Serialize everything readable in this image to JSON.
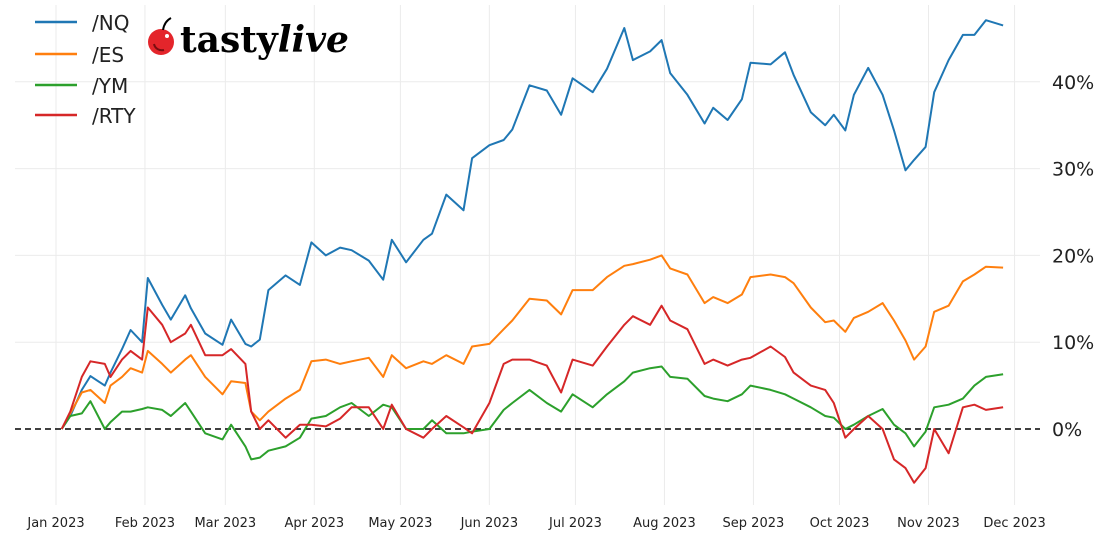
{
  "logo": {
    "text_main": "tasty",
    "text_italic": "live",
    "cherry_color": "#e4252b"
  },
  "chart_data": {
    "type": "line",
    "title": "",
    "xlabel": "",
    "ylabel": "",
    "grid": true,
    "legend_position": "top-left",
    "ylim": [
      -8.2,
      48.8
    ],
    "xlim": [
      "2022-12-31",
      "2023-12-16"
    ],
    "zero_line": "dashed",
    "x_ticks": [
      {
        "date": "2023-01-01",
        "label": "Jan 2023"
      },
      {
        "date": "2023-02-01",
        "label": "Feb 2023"
      },
      {
        "date": "2023-03-01",
        "label": "Mar 2023"
      },
      {
        "date": "2023-04-01",
        "label": "Apr 2023"
      },
      {
        "date": "2023-05-01",
        "label": "May 2023"
      },
      {
        "date": "2023-06-01",
        "label": "Jun 2023"
      },
      {
        "date": "2023-07-01",
        "label": "Jul 2023"
      },
      {
        "date": "2023-08-01",
        "label": "Aug 2023"
      },
      {
        "date": "2023-09-01",
        "label": "Sep 2023"
      },
      {
        "date": "2023-10-01",
        "label": "Oct 2023"
      },
      {
        "date": "2023-11-01",
        "label": "Nov 2023"
      },
      {
        "date": "2023-12-01",
        "label": "Dec 2023"
      }
    ],
    "y_ticks": [
      {
        "value": 0,
        "label": "0%"
      },
      {
        "value": 10,
        "label": "10%"
      },
      {
        "value": 20,
        "label": "20%"
      },
      {
        "value": 30,
        "label": "30%"
      },
      {
        "value": 40,
        "label": "40%"
      }
    ],
    "x": [
      "2023-01-03",
      "2023-01-06",
      "2023-01-10",
      "2023-01-13",
      "2023-01-18",
      "2023-01-20",
      "2023-01-24",
      "2023-01-27",
      "2023-01-31",
      "2023-02-02",
      "2023-02-07",
      "2023-02-10",
      "2023-02-15",
      "2023-02-17",
      "2023-02-22",
      "2023-02-28",
      "2023-03-03",
      "2023-03-08",
      "2023-03-10",
      "2023-03-13",
      "2023-03-16",
      "2023-03-22",
      "2023-03-27",
      "2023-03-31",
      "2023-04-05",
      "2023-04-10",
      "2023-04-14",
      "2023-04-20",
      "2023-04-25",
      "2023-04-28",
      "2023-05-03",
      "2023-05-09",
      "2023-05-12",
      "2023-05-17",
      "2023-05-23",
      "2023-05-26",
      "2023-06-01",
      "2023-06-06",
      "2023-06-09",
      "2023-06-15",
      "2023-06-21",
      "2023-06-26",
      "2023-06-30",
      "2023-07-07",
      "2023-07-12",
      "2023-07-18",
      "2023-07-21",
      "2023-07-27",
      "2023-07-31",
      "2023-08-03",
      "2023-08-09",
      "2023-08-15",
      "2023-08-18",
      "2023-08-23",
      "2023-08-28",
      "2023-08-31",
      "2023-09-07",
      "2023-09-12",
      "2023-09-15",
      "2023-09-21",
      "2023-09-26",
      "2023-09-29",
      "2023-10-03",
      "2023-10-06",
      "2023-10-11",
      "2023-10-16",
      "2023-10-20",
      "2023-10-24",
      "2023-10-27",
      "2023-10-31",
      "2023-11-03",
      "2023-11-08",
      "2023-11-13",
      "2023-11-17",
      "2023-11-21",
      "2023-11-27"
    ],
    "series": [
      {
        "name": "/NQ",
        "color": "#1f77b4",
        "values": [
          0,
          1.5,
          4.5,
          6.1,
          5,
          6.5,
          9.2,
          11.4,
          10,
          17.4,
          14.3,
          12.6,
          15.4,
          13.9,
          11,
          9.7,
          12.6,
          9.8,
          9.5,
          10.3,
          16,
          17.7,
          16.6,
          21.5,
          20,
          20.9,
          20.6,
          19.4,
          17.2,
          21.8,
          19.2,
          21.8,
          22.5,
          27,
          25.2,
          31.2,
          32.7,
          33.3,
          34.5,
          39.6,
          39,
          36.2,
          40.4,
          38.8,
          41.5,
          46.2,
          42.5,
          43.5,
          44.8,
          41,
          38.5,
          35.2,
          37,
          35.6,
          38,
          42.2,
          42,
          43.4,
          40.8,
          36.5,
          35,
          36.2,
          34.4,
          38.5,
          41.6,
          38.5,
          34.4,
          29.8,
          31,
          32.5,
          38.8,
          42.5,
          45.4,
          45.4,
          47.1,
          46.5
        ]
      },
      {
        "name": "/ES",
        "color": "#ff7f0e",
        "values": [
          0,
          1.8,
          4.2,
          4.5,
          3,
          5,
          6,
          7,
          6.5,
          9,
          7.5,
          6.5,
          8,
          8.5,
          6,
          4,
          5.5,
          5.3,
          2,
          1,
          2,
          3.5,
          4.5,
          7.8,
          8,
          7.5,
          7.8,
          8.2,
          6,
          8.5,
          7,
          7.8,
          7.5,
          8.5,
          7.5,
          9.5,
          9.8,
          11.5,
          12.5,
          15,
          14.8,
          13.2,
          16,
          16,
          17.5,
          18.8,
          19,
          19.5,
          20,
          18.5,
          17.8,
          14.5,
          15.2,
          14.5,
          15.5,
          17.5,
          17.8,
          17.5,
          16.8,
          14,
          12.3,
          12.5,
          11.2,
          12.8,
          13.5,
          14.5,
          12.5,
          10.2,
          8,
          9.5,
          13.5,
          14.2,
          17,
          17.8,
          18.7,
          18.6
        ]
      },
      {
        "name": "/YM",
        "color": "#2ca02c",
        "values": [
          0,
          1.5,
          1.8,
          3.2,
          0,
          0.8,
          2,
          2,
          2.3,
          2.5,
          2.2,
          1.5,
          3,
          2,
          -0.5,
          -1.2,
          0.5,
          -2,
          -3.5,
          -3.3,
          -2.5,
          -2,
          -1,
          1.2,
          1.5,
          2.5,
          3,
          1.5,
          2.8,
          2.5,
          0,
          0,
          1,
          -0.5,
          -0.5,
          -0.3,
          0,
          2.2,
          3,
          4.5,
          3,
          2,
          4,
          2.5,
          4,
          5.5,
          6.5,
          7,
          7.2,
          6,
          5.8,
          3.8,
          3.5,
          3.2,
          4,
          5,
          4.5,
          4,
          3.5,
          2.5,
          1.5,
          1.3,
          0,
          0.5,
          1.5,
          2.3,
          0.5,
          -0.5,
          -2,
          -0.3,
          2.5,
          2.8,
          3.5,
          5,
          6,
          6.3
        ]
      },
      {
        "name": "/RTY",
        "color": "#d62728",
        "values": [
          0,
          2,
          6,
          7.8,
          7.5,
          6,
          8,
          9,
          8,
          14,
          12,
          10,
          11,
          12,
          8.5,
          8.5,
          9.2,
          7.5,
          2,
          0,
          1,
          -1,
          0.5,
          0.5,
          0.3,
          1.2,
          2.5,
          2.5,
          0,
          2.8,
          0,
          -1,
          0,
          1.5,
          0.2,
          -0.5,
          3,
          7.5,
          8,
          8,
          7.3,
          4.2,
          8,
          7.3,
          9.5,
          12,
          13,
          12,
          14.2,
          12.5,
          11.5,
          7.5,
          8,
          7.3,
          8,
          8.2,
          9.5,
          8.3,
          6.5,
          5,
          4.5,
          3,
          -1,
          0,
          1.5,
          0,
          -3.5,
          -4.5,
          -6.2,
          -4.5,
          0,
          -2.8,
          2.5,
          2.8,
          2.2,
          2.5
        ]
      }
    ]
  }
}
